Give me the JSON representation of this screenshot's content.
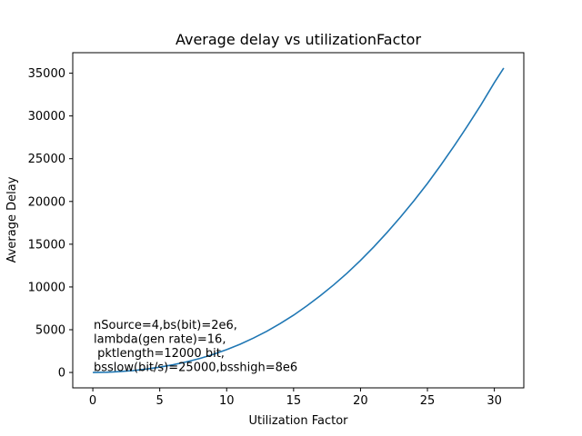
{
  "chart_data": {
    "type": "line",
    "title": "Average delay vs utilizationFactor",
    "xlabel": "Utilization Factor",
    "ylabel": "Average Delay",
    "xlim": [
      -1.5,
      32.2
    ],
    "ylim": [
      -1800,
      37400
    ],
    "xticks": [
      0,
      5,
      10,
      15,
      20,
      25,
      30
    ],
    "yticks": [
      0,
      5000,
      10000,
      15000,
      20000,
      25000,
      30000,
      35000
    ],
    "grid": false,
    "line_color": "#1f77b4",
    "annotation_lines": [
      "nSource=4,bs(bit)=2e6,",
      "lambda(gen rate)=16,",
      " pktlength=12000 bit,",
      "bsslow(bit/s)=25000,bsshigh=8e6"
    ],
    "series": [
      {
        "x": [
          0,
          1,
          2,
          3,
          4,
          5,
          6,
          7,
          8,
          9,
          10,
          11,
          12,
          13,
          14,
          15,
          16,
          17,
          18,
          19,
          20,
          21,
          22,
          23,
          24,
          25,
          26,
          27,
          28,
          29,
          30,
          30.7
        ],
        "y": [
          0,
          30,
          100,
          220,
          400,
          620,
          900,
          1240,
          1640,
          2120,
          2670,
          3300,
          4020,
          4820,
          5720,
          6700,
          7800,
          8980,
          10250,
          11620,
          13100,
          14700,
          16400,
          18200,
          20100,
          22100,
          24250,
          26500,
          28850,
          31300,
          33900,
          35600
        ]
      }
    ]
  }
}
